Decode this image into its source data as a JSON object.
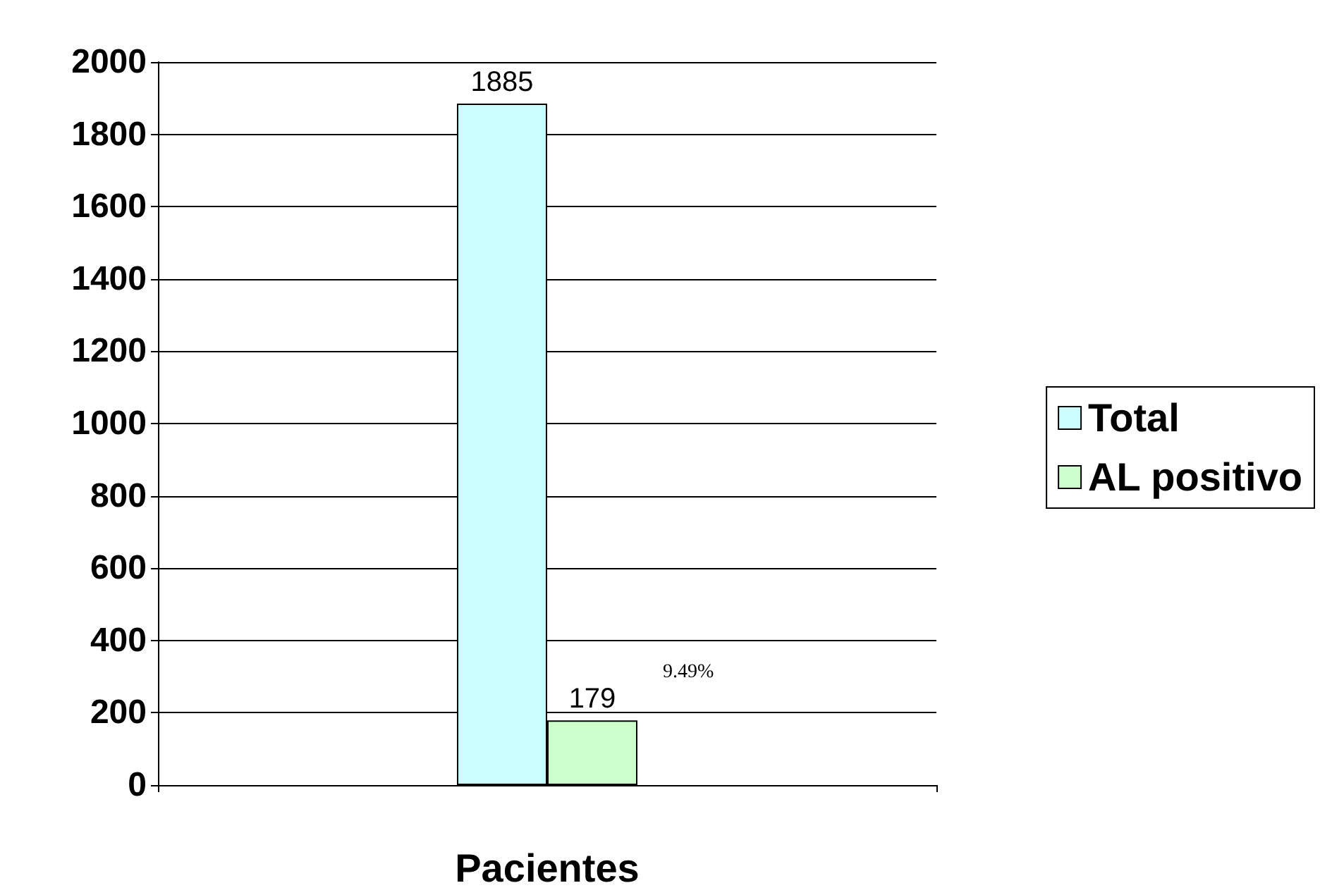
{
  "chart_data": {
    "type": "bar",
    "xlabel": "Pacientes",
    "categories": [
      null
    ],
    "series": [
      {
        "name": "Total",
        "color": "#ccffff",
        "values": [
          1885
        ]
      },
      {
        "name": "AL positivo",
        "color": "#ccffcc",
        "values": [
          179
        ]
      }
    ],
    "ylim": [
      0,
      2000
    ],
    "yticks": [
      0,
      200,
      400,
      600,
      800,
      1000,
      1200,
      1400,
      1600,
      1800,
      2000
    ],
    "grid": "y",
    "legend": "right",
    "data_labels": true,
    "annotations": [
      "9.49%"
    ]
  }
}
